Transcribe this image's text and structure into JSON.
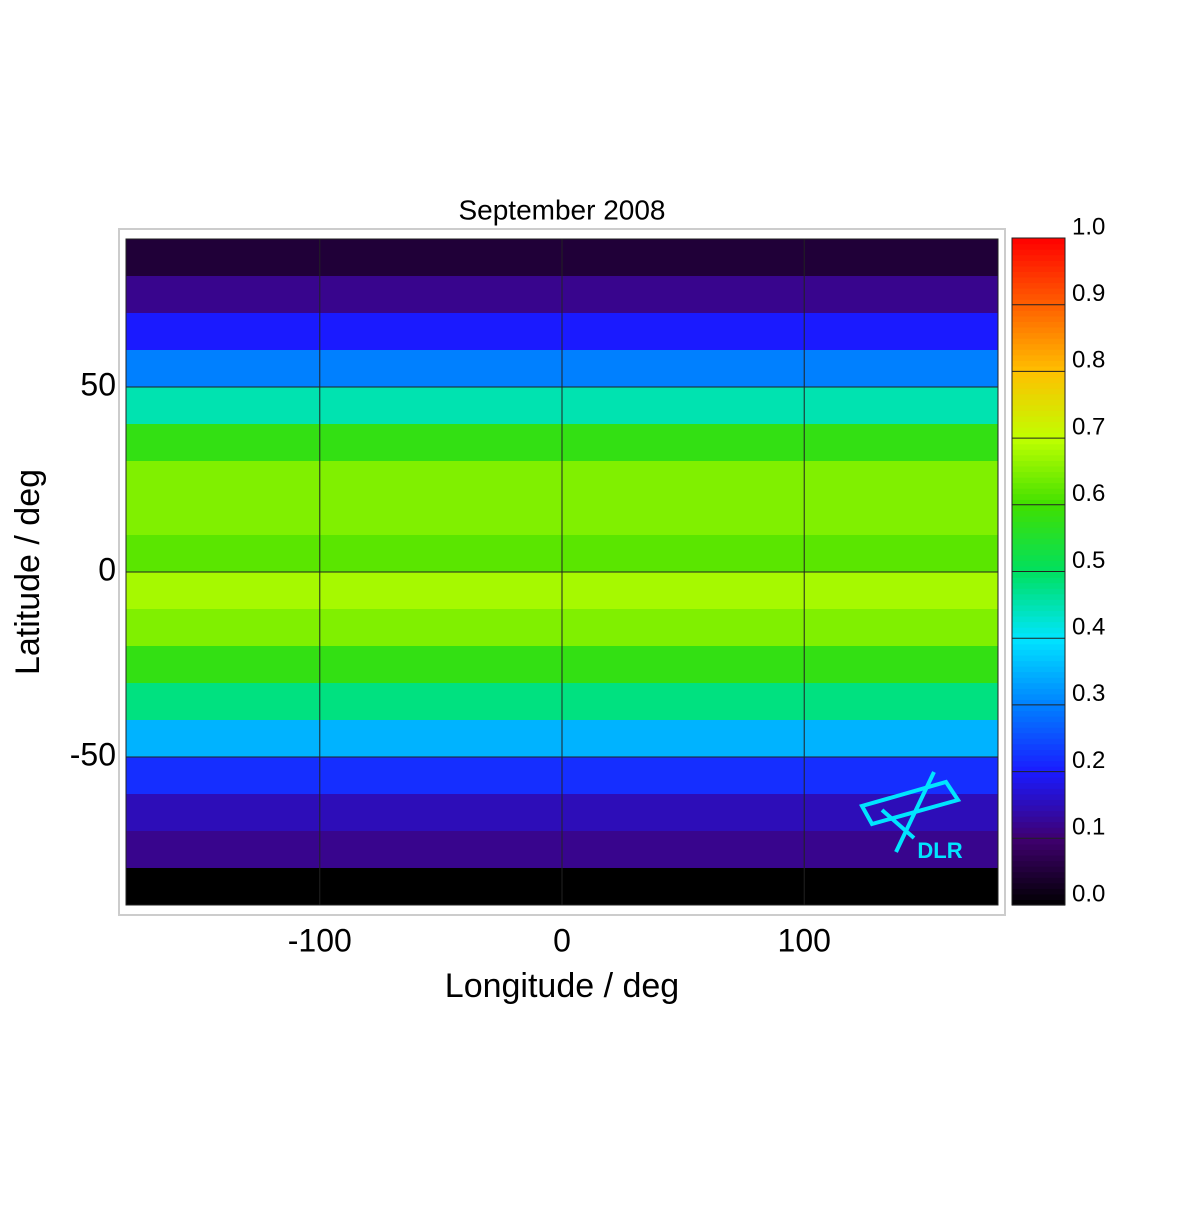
{
  "chart_data": {
    "type": "heatmap",
    "title": "September 2008",
    "xlabel": "Longitude / deg",
    "ylabel": "Latitude / deg",
    "xlim": [
      -180,
      180
    ],
    "ylim": [
      -90,
      90
    ],
    "xticks": [
      -100,
      0,
      100
    ],
    "yticks": [
      50,
      0,
      -50
    ],
    "grid": true,
    "y": [
      85,
      75,
      65,
      55,
      45,
      35,
      25,
      15,
      5,
      -5,
      -15,
      -25,
      -35,
      -45,
      -55,
      -65,
      -75,
      -85
    ],
    "values": [
      0.05,
      0.12,
      0.2,
      0.3,
      0.45,
      0.58,
      0.65,
      0.65,
      0.62,
      0.68,
      0.65,
      0.58,
      0.48,
      0.35,
      0.22,
      0.15,
      0.12,
      0.0
    ],
    "clim": [
      0,
      1
    ],
    "colormap": [
      "#000000",
      "#400070",
      "#1a1aff",
      "#0080ff",
      "#00e5ff",
      "#00e060",
      "#40e000",
      "#c0ff00",
      "#ffc000",
      "#ff6000",
      "#ff0000"
    ],
    "cticks": [
      {
        "value": 0,
        "label": "0.0"
      },
      0.1,
      0.2,
      0.3,
      0.4,
      0.5,
      0.6,
      0.7,
      0.8,
      0.9,
      {
        "value": 1,
        "label": "1.0"
      }
    ],
    "logo_text": "DLR"
  }
}
